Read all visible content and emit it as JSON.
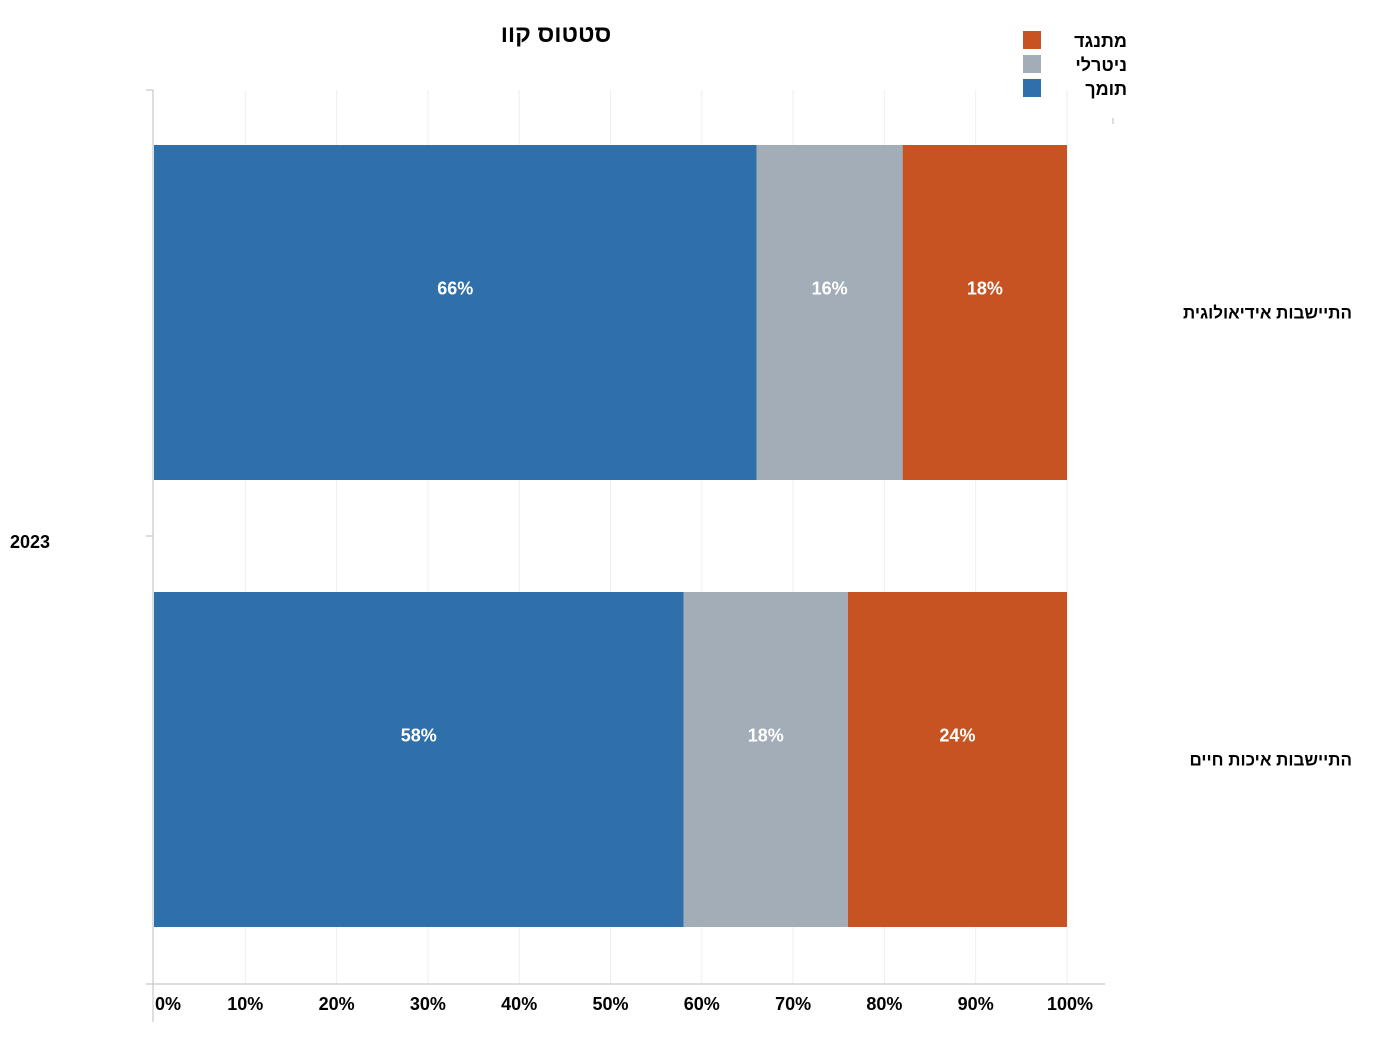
{
  "chart_data": {
    "type": "bar",
    "orientation": "horizontal",
    "stacked": true,
    "title": "סטטוס קוו",
    "group_label": "2023",
    "categories": [
      "התיישבות אידיאולוגית",
      "התיישבות איכות חיים"
    ],
    "series": [
      {
        "name": "תומך",
        "values": [
          66,
          58
        ],
        "labels": [
          "66%",
          "58%"
        ],
        "color": "#3070aa"
      },
      {
        "name": "ניטרלי",
        "values": [
          16,
          18
        ],
        "labels": [
          "16%",
          "18%"
        ],
        "color": "#a3adb8"
      },
      {
        "name": "מתנגד",
        "values": [
          18,
          24
        ],
        "labels": [
          "18%",
          "24%"
        ],
        "color": "#c75322"
      }
    ],
    "legend_order": [
      "מתנגד",
      "ניטרלי",
      "תומך"
    ],
    "legend_position": "top-right",
    "xlim": [
      0,
      100
    ],
    "x_ticks": [
      0,
      10,
      20,
      30,
      40,
      50,
      60,
      70,
      80,
      90,
      100
    ],
    "x_tick_labels": [
      "0%",
      "10%",
      "20%",
      "30%",
      "40%",
      "50%",
      "60%",
      "70%",
      "80%",
      "90%",
      "100%"
    ],
    "grid": true
  }
}
